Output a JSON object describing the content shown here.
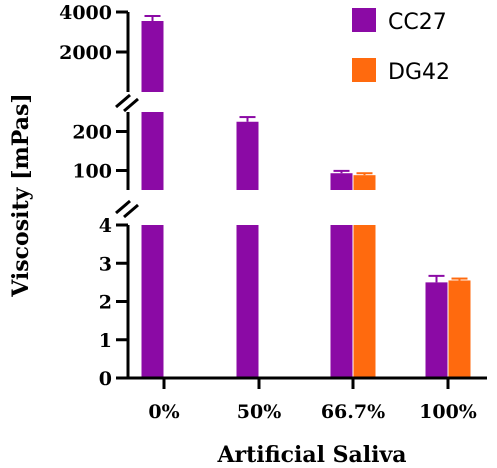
{
  "chart_data": {
    "type": "bar",
    "categories": [
      "0%",
      "50%",
      "66.7%",
      "100%"
    ],
    "series": [
      {
        "name": "CC27",
        "color": "#8b0aa5",
        "values": [
          3550,
          225,
          93,
          2.5
        ],
        "errors": [
          250,
          12,
          6,
          0.17
        ]
      },
      {
        "name": "DG42",
        "color": "#ff6a0e",
        "values": [
          null,
          null,
          88,
          2.55
        ],
        "errors": [
          null,
          null,
          5,
          0.05
        ]
      }
    ],
    "xlabel": "Artificial Saliva",
    "ylabel": "Viscosity [mPas]",
    "y_segments": [
      {
        "range": [
          0,
          4
        ],
        "ticks": [
          "0",
          "1",
          "2",
          "3",
          "4"
        ]
      },
      {
        "range": [
          50,
          250
        ],
        "ticks": [
          "100",
          "200"
        ]
      },
      {
        "range": [
          0,
          4000
        ],
        "ticks": [
          "2000",
          "4000"
        ]
      }
    ],
    "axis_break": true,
    "legend_position": "top-right",
    "grid": false
  }
}
